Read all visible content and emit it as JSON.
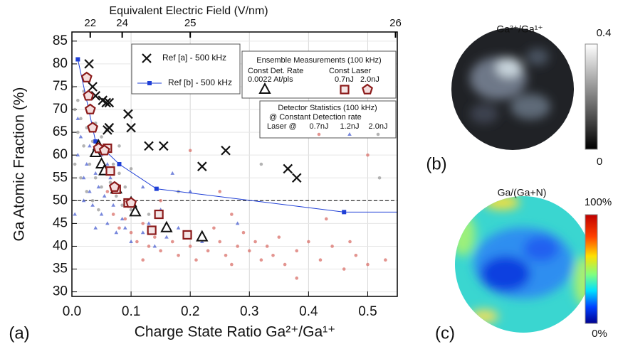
{
  "chart_data": {
    "type": "scatter",
    "x_label": "Charge State Ratio Ga²⁺/Ga¹⁺",
    "y_label": "Ga Atomic Fraction (%)",
    "x2_label": "Equivalent Electric Field (V/nm)",
    "xlim": [
      0,
      0.55
    ],
    "ylim": [
      29,
      87
    ],
    "xticks": [
      {
        "value": 0,
        "label": "0.0"
      },
      0.1,
      0.2,
      0.3,
      0.4,
      0.5
    ],
    "yticks": [
      30,
      35,
      40,
      45,
      50,
      55,
      60,
      65,
      70,
      75,
      80,
      85
    ],
    "x2ticks": [
      {
        "value": 0.031,
        "label": "22"
      },
      {
        "value": 0.085,
        "label": "24"
      },
      {
        "value": 0.2,
        "label": "25"
      },
      {
        "value": 0.547,
        "label": "26"
      }
    ],
    "grid": true,
    "hline": 50,
    "legend_texts": {
      "ensemble_title": "Ensemble Measurements (100 kHz)",
      "const_det": "Const Det. Rate",
      "const_laser": "Const Laser",
      "stats_title": "Detector Statistics (100 kHz)",
      "stats_sub": "@ Constant Detection rate",
      "stats_laser": "Laser @"
    },
    "panel_label": "(a)",
    "series": [
      {
        "name": "2.0nJ",
        "marker": "dot",
        "color": "#9a9a9a",
        "x": [
          0,
          0.005,
          0.01,
          0.01,
          0.015,
          0.02,
          0.02,
          0.025,
          0.03,
          0.03,
          0.035,
          0.04,
          0.04,
          0.045,
          0.05,
          0.05,
          0.055,
          0.06,
          0.065,
          0.07,
          0.075,
          0.08,
          0.085,
          0.09,
          0.1,
          0.005,
          0.015,
          0.025,
          0.035,
          0.045,
          0.06,
          0.08,
          0.1,
          0.13,
          0.52,
          0.32,
          0.18
        ],
        "values": [
          75,
          70,
          72,
          65,
          68,
          74,
          62,
          66,
          70,
          58,
          63,
          67,
          55,
          60,
          64,
          53,
          57,
          61,
          54,
          58,
          51,
          56,
          49,
          53,
          48,
          58,
          55,
          52,
          50,
          48,
          66,
          62,
          57,
          47,
          55,
          58,
          52
        ]
      },
      {
        "name": "1.2nJ",
        "marker": "small-triangle",
        "color": "#4a5fd0",
        "x": [
          0.01,
          0.015,
          0.02,
          0.025,
          0.03,
          0.03,
          0.035,
          0.04,
          0.045,
          0.05,
          0.05,
          0.055,
          0.06,
          0.065,
          0.07,
          0.075,
          0.08,
          0.085,
          0.09,
          0.095,
          0.1,
          0.11,
          0.12,
          0.13,
          0.14,
          0.15,
          0.16,
          0.18,
          0.2,
          0.22,
          0.28,
          0.01,
          0.005,
          0.02,
          0.04,
          0.06,
          0.17,
          0.12
        ],
        "values": [
          60,
          64,
          55,
          58,
          52,
          62,
          49,
          56,
          53,
          47,
          60,
          51,
          45,
          55,
          49,
          43,
          52,
          46,
          44,
          50,
          41,
          47,
          43,
          45,
          40,
          48,
          42,
          44,
          52,
          41,
          45,
          68,
          47,
          50,
          44,
          58,
          56,
          53
        ]
      },
      {
        "name": "0.7nJ",
        "marker": "dot",
        "color": "#d9706a",
        "x": [
          0.06,
          0.07,
          0.08,
          0.09,
          0.1,
          0.11,
          0.12,
          0.13,
          0.14,
          0.15,
          0.16,
          0.17,
          0.18,
          0.19,
          0.2,
          0.21,
          0.22,
          0.23,
          0.24,
          0.25,
          0.26,
          0.27,
          0.28,
          0.29,
          0.3,
          0.31,
          0.32,
          0.33,
          0.34,
          0.35,
          0.36,
          0.38,
          0.4,
          0.42,
          0.44,
          0.46,
          0.48,
          0.5,
          0.5,
          0.47,
          0.43,
          0.2,
          0.25,
          0.15,
          0.53,
          0.38,
          0.12,
          0.27
        ],
        "values": [
          52,
          47,
          44,
          46,
          43,
          41,
          45,
          40,
          42,
          39,
          44,
          41,
          38,
          43,
          40,
          37,
          42,
          39,
          44,
          41,
          38,
          36,
          40,
          43,
          39,
          41,
          37,
          40,
          38,
          42,
          36,
          39,
          41,
          37,
          40,
          35,
          38,
          60,
          36,
          41,
          46,
          61,
          52,
          50,
          37,
          33,
          37,
          47
        ]
      },
      {
        "name": "Ref [b] - 500 kHz",
        "marker": "square",
        "line": true,
        "color": "#1f3fd6",
        "x": [
          0.01,
          0.04,
          0.08,
          0.143,
          0.46
        ],
        "values": [
          81,
          63,
          58,
          52.6,
          47.5
        ]
      },
      {
        "name": "Ref [a] - 500 kHz",
        "marker": "x",
        "color": "#111111",
        "x": [
          0.029,
          0.035,
          0.04,
          0.052,
          0.058,
          0.063,
          0.06,
          0.063,
          0.095,
          0.1,
          0.13,
          0.155,
          0.22,
          0.26,
          0.365,
          0.38
        ],
        "values": [
          80,
          75,
          73,
          72,
          71.5,
          71.5,
          65.5,
          66,
          69,
          66,
          62,
          62,
          57.5,
          61,
          57,
          55
        ]
      },
      {
        "name": "0.0022 At/pls",
        "marker": "open-triangle",
        "color": "#111111",
        "x": [
          0.04,
          0.045,
          0.05,
          0.055,
          0.075,
          0.1,
          0.107,
          0.16,
          0.22
        ],
        "values": [
          60.5,
          62,
          58,
          56.5,
          52.5,
          49.5,
          47.5,
          44,
          42
        ]
      },
      {
        "name": "0.7nJ",
        "marker": "open-square",
        "color": "#8b1a1a",
        "x": [
          0.065,
          0.075,
          0.095,
          0.135,
          0.147,
          0.195,
          0.06
        ],
        "values": [
          56.5,
          52.5,
          49.5,
          43.5,
          47,
          42.5,
          61.5
        ]
      },
      {
        "name": "2.0nJ",
        "marker": "open-pentagon",
        "color": "#8b1a1a",
        "x": [
          0.025,
          0.028,
          0.031,
          0.035,
          0.045,
          0.055,
          0.072,
          0.1
        ],
        "values": [
          77,
          73,
          70,
          66,
          61.5,
          61,
          53,
          49.5
        ]
      }
    ]
  },
  "panels": {
    "b": {
      "title": "Ga²⁺/Ga¹⁺",
      "colorbar_top": "0.4",
      "colorbar_bottom": "0",
      "label": "(b)"
    },
    "c": {
      "title": "Ga/(Ga+N)",
      "colorbar_top": "100%",
      "colorbar_bottom": "0%",
      "label": "(c)"
    }
  }
}
